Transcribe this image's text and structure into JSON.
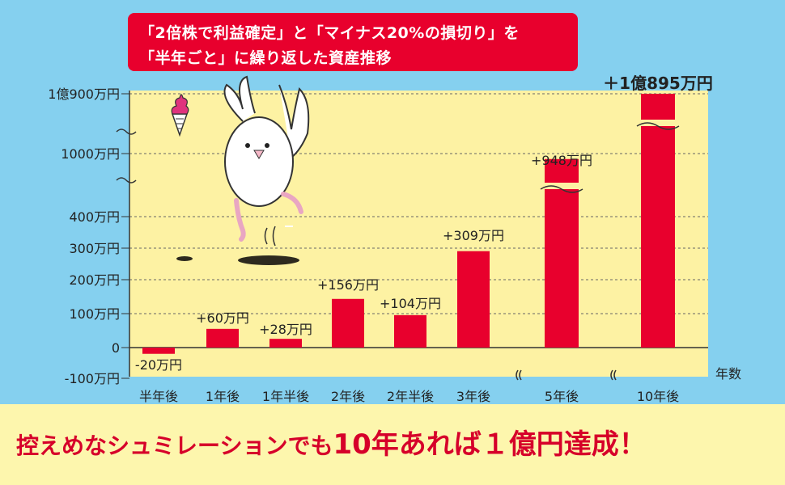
{
  "title": {
    "line1": "「2倍株で利益確定」と「マイナス20%の損切り」を",
    "line2": "「半年ごと」に繰り返した資産推移"
  },
  "bottom_message": {
    "part1": "控えめなシュミレーションでも",
    "part2": "10年あれば１億円達成！"
  },
  "colors": {
    "background": "#85d0ef",
    "plot_area": "#fdf2a3",
    "bar": "#e8002d",
    "title_box": "#e8002d",
    "bottom_band": "#fdf6ad",
    "bottom_text": "#d6002a"
  },
  "chart_data": {
    "type": "bar",
    "xlabel": "年数",
    "ylabel": "",
    "y_scale": "broken",
    "grid": "dashed horizontal",
    "y_ticks": [
      "1億900万円",
      "1000万円",
      "400万円",
      "300万円",
      "200万円",
      "100万円",
      "0",
      "-100万円"
    ],
    "categories": [
      "半年後",
      "1年後",
      "1年半後",
      "2年後",
      "2年半後",
      "3年後",
      "5年後",
      "10年後"
    ],
    "values": [
      -20,
      60,
      28,
      156,
      104,
      309,
      948,
      10895
    ],
    "value_labels": [
      "-20万円",
      "+60万円",
      "+28万円",
      "+156万円",
      "+104万円",
      "+309万円",
      "+948万円",
      "＋1億895万円"
    ],
    "units": "万円"
  },
  "icons": [
    "ice-cream-icon",
    "bird-character-icon"
  ]
}
